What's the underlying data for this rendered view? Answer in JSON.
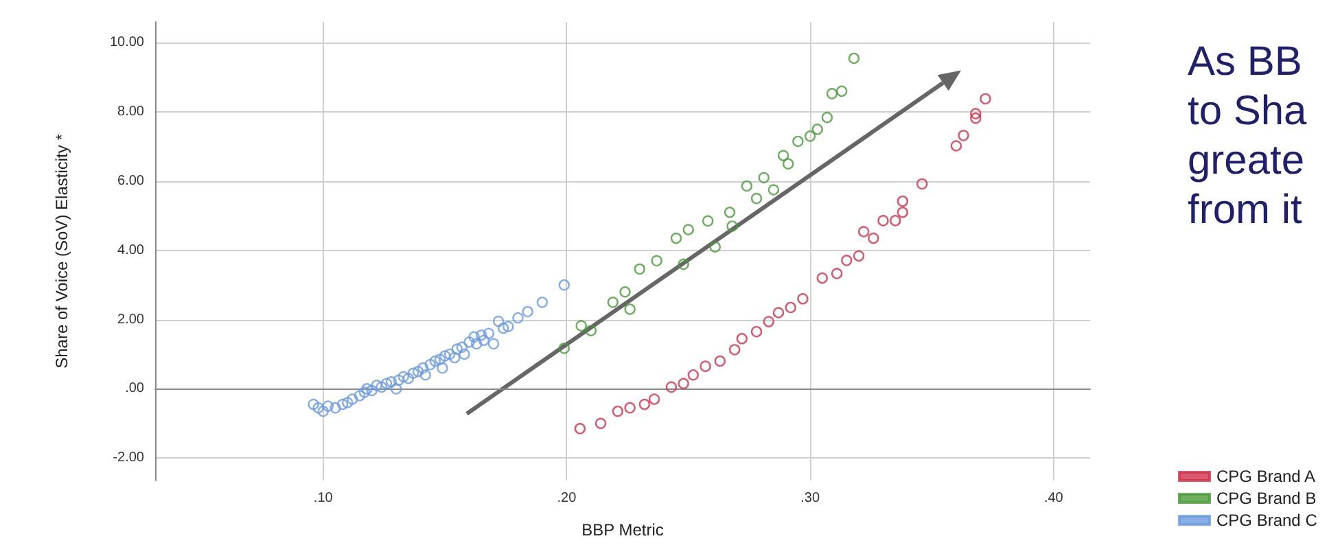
{
  "chart_data": {
    "type": "scatter",
    "xlabel": "BBP Metric",
    "ylabel": "Share of Voice (SoV) Elasticity *",
    "xlim": [
      0.031,
      0.415
    ],
    "ylim": [
      -2.65,
      10.6
    ],
    "xticks": [
      {
        "value": 0.1,
        "label": ".10"
      },
      {
        "value": 0.2,
        "label": ".20"
      },
      {
        "value": 0.3,
        "label": ".30"
      },
      {
        "value": 0.4,
        "label": ".40"
      }
    ],
    "yticks": [
      {
        "value": -2,
        "label": "-2.00"
      },
      {
        "value": 0,
        "label": ".00"
      },
      {
        "value": 2,
        "label": "2.00"
      },
      {
        "value": 4,
        "label": "4.00"
      },
      {
        "value": 6,
        "label": "6.00"
      },
      {
        "value": 8,
        "label": "8.00"
      },
      {
        "value": 10,
        "label": "10.00"
      }
    ],
    "grid": true,
    "legend": "right",
    "marker": "circle",
    "annotations": [
      "As BB",
      "to Sha",
      "greate",
      "from it"
    ],
    "series": [
      {
        "name": "CPG Brand A",
        "color": "#d0304a",
        "x": [
          0.2055,
          0.214,
          0.221,
          0.226,
          0.232,
          0.236,
          0.243,
          0.248,
          0.252,
          0.257,
          0.263,
          0.269,
          0.272,
          0.278,
          0.283,
          0.287,
          0.292,
          0.297,
          0.305,
          0.311,
          0.315,
          0.32,
          0.322,
          0.326,
          0.33,
          0.335,
          0.338,
          0.338,
          0.346,
          0.36,
          0.363,
          0.368,
          0.368,
          0.372
        ],
        "values": [
          -1.15,
          -1.0,
          -0.65,
          -0.55,
          -0.45,
          -0.3,
          0.05,
          0.15,
          0.4,
          0.65,
          0.8,
          1.13,
          1.45,
          1.65,
          1.94,
          2.2,
          2.35,
          2.6,
          3.2,
          3.33,
          3.71,
          3.84,
          4.54,
          4.35,
          4.86,
          4.86,
          5.42,
          5.1,
          5.92,
          7.02,
          7.32,
          7.82,
          7.95,
          8.38
        ]
      },
      {
        "name": "CPG Brand B",
        "color": "#4a9a3a",
        "x": [
          0.199,
          0.206,
          0.21,
          0.219,
          0.224,
          0.226,
          0.23,
          0.237,
          0.245,
          0.248,
          0.25,
          0.258,
          0.261,
          0.267,
          0.268,
          0.274,
          0.278,
          0.281,
          0.285,
          0.289,
          0.291,
          0.295,
          0.3,
          0.303,
          0.307,
          0.309,
          0.313,
          0.318
        ],
        "values": [
          1.17,
          1.82,
          1.68,
          2.5,
          2.8,
          2.3,
          3.46,
          3.7,
          4.35,
          3.6,
          4.6,
          4.85,
          4.1,
          5.1,
          4.7,
          5.86,
          5.5,
          6.1,
          5.75,
          6.74,
          6.5,
          7.15,
          7.3,
          7.5,
          7.84,
          8.53,
          8.6,
          9.55
        ]
      },
      {
        "name": "CPG Brand C",
        "color": "#6a9ae0",
        "x": [
          0.096,
          0.098,
          0.1,
          0.102,
          0.105,
          0.108,
          0.11,
          0.112,
          0.115,
          0.117,
          0.118,
          0.12,
          0.122,
          0.124,
          0.126,
          0.128,
          0.13,
          0.131,
          0.133,
          0.135,
          0.137,
          0.139,
          0.141,
          0.142,
          0.144,
          0.146,
          0.148,
          0.149,
          0.15,
          0.152,
          0.154,
          0.155,
          0.157,
          0.158,
          0.16,
          0.162,
          0.163,
          0.165,
          0.166,
          0.168,
          0.17,
          0.172,
          0.174,
          0.176,
          0.18,
          0.184,
          0.19,
          0.199
        ],
        "values": [
          -0.45,
          -0.55,
          -0.65,
          -0.5,
          -0.55,
          -0.45,
          -0.4,
          -0.3,
          -0.2,
          -0.1,
          0.0,
          -0.05,
          0.1,
          0.05,
          0.15,
          0.2,
          0.0,
          0.25,
          0.35,
          0.3,
          0.45,
          0.5,
          0.6,
          0.4,
          0.7,
          0.8,
          0.85,
          0.6,
          0.95,
          1.0,
          0.9,
          1.15,
          1.2,
          1.0,
          1.35,
          1.5,
          1.3,
          1.55,
          1.4,
          1.6,
          1.3,
          1.95,
          1.75,
          1.8,
          2.05,
          2.23,
          2.5,
          3.0
        ]
      }
    ]
  }
}
